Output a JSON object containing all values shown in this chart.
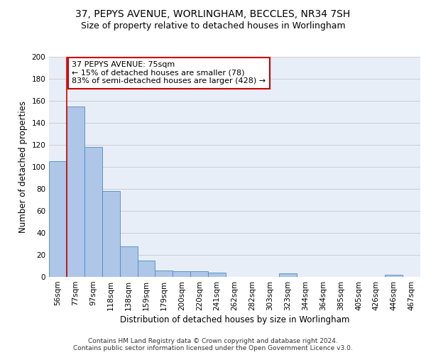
{
  "title1": "37, PEPYS AVENUE, WORLINGHAM, BECCLES, NR34 7SH",
  "title2": "Size of property relative to detached houses in Worlingham",
  "xlabel": "Distribution of detached houses by size in Worlingham",
  "ylabel": "Number of detached properties",
  "categories": [
    "56sqm",
    "77sqm",
    "97sqm",
    "118sqm",
    "138sqm",
    "159sqm",
    "179sqm",
    "200sqm",
    "220sqm",
    "241sqm",
    "262sqm",
    "282sqm",
    "303sqm",
    "323sqm",
    "344sqm",
    "364sqm",
    "385sqm",
    "405sqm",
    "426sqm",
    "446sqm",
    "467sqm"
  ],
  "values": [
    105,
    155,
    118,
    78,
    28,
    15,
    6,
    5,
    5,
    4,
    0,
    0,
    0,
    3,
    0,
    0,
    0,
    0,
    0,
    2,
    0
  ],
  "bar_color": "#aec6e8",
  "bar_edge_color": "#4c8cbf",
  "annotation_text": "37 PEPYS AVENUE: 75sqm\n← 15% of detached houses are smaller (78)\n83% of semi-detached houses are larger (428) →",
  "annotation_box_color": "#ffffff",
  "annotation_box_edge": "#cc0000",
  "annotation_line_color": "#cc0000",
  "ylim": [
    0,
    200
  ],
  "yticks": [
    0,
    20,
    40,
    60,
    80,
    100,
    120,
    140,
    160,
    180,
    200
  ],
  "grid_color": "#cccccc",
  "bg_color": "#e8eef8",
  "footer1": "Contains HM Land Registry data © Crown copyright and database right 2024.",
  "footer2": "Contains public sector information licensed under the Open Government Licence v3.0.",
  "title1_fontsize": 10,
  "title2_fontsize": 9,
  "axis_label_fontsize": 8.5,
  "tick_fontsize": 7.5,
  "annotation_fontsize": 8,
  "footer_fontsize": 6.5
}
